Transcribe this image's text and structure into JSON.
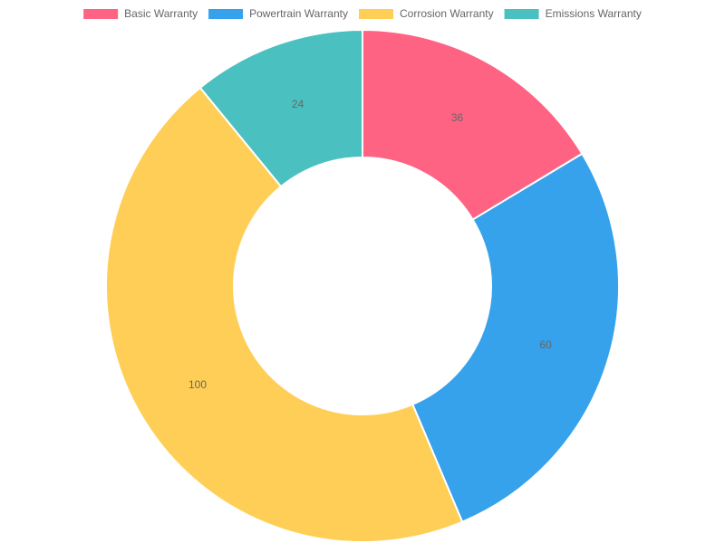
{
  "chart_data": {
    "type": "doughnut",
    "categories": [
      "Basic Warranty",
      "Powertrain Warranty",
      "Corrosion Warranty",
      "Emissions Warranty"
    ],
    "values": [
      36,
      60,
      100,
      24
    ],
    "colors": [
      "#ff6384",
      "#36a2eb",
      "#ffce56",
      "#4bc0c0"
    ],
    "legend": "top"
  }
}
